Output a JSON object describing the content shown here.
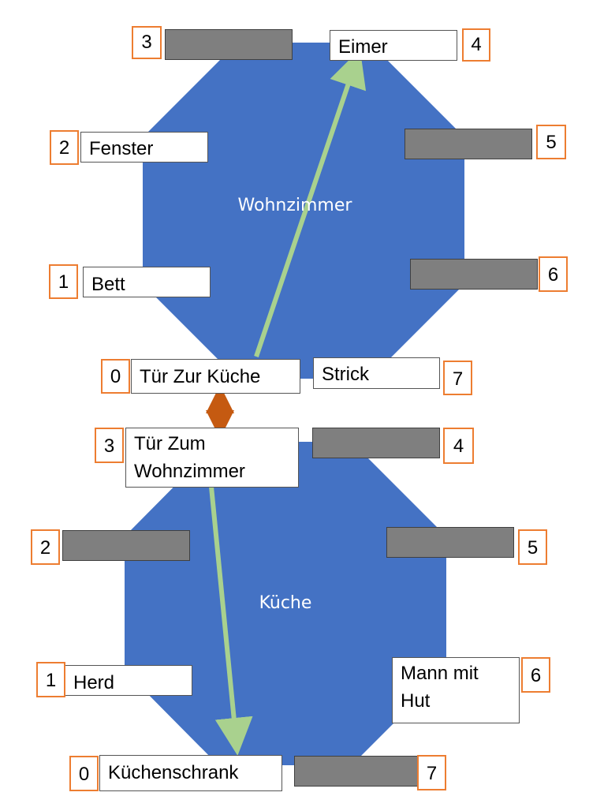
{
  "colors": {
    "room_fill": "#4472c4",
    "path_arrow": "#a9d18e",
    "link_arrow": "#c55a11",
    "number_border": "#ed7d31",
    "blank_box": "#7f7f7f"
  },
  "wohnzimmer": {
    "name": "Wohnzimmer",
    "slots": [
      {
        "number": "0",
        "label": "Tür Zur Küche"
      },
      {
        "number": "1",
        "label": "Bett"
      },
      {
        "number": "2",
        "label": "Fenster"
      },
      {
        "number": "3",
        "label": ""
      },
      {
        "number": "4",
        "label": "Eimer"
      },
      {
        "number": "5",
        "label": ""
      },
      {
        "number": "6",
        "label": ""
      },
      {
        "number": "7",
        "label": "Strick"
      }
    ]
  },
  "kueche": {
    "name": "Küche",
    "slots": [
      {
        "number": "0",
        "label": "Küchenschrank"
      },
      {
        "number": "1",
        "label": "Herd"
      },
      {
        "number": "2",
        "label": ""
      },
      {
        "number": "3",
        "label": "Tür Zum Wohnzimmer"
      },
      {
        "number": "4",
        "label": ""
      },
      {
        "number": "5",
        "label": ""
      },
      {
        "number": "6",
        "label": "Mann mit Hut"
      },
      {
        "number": "7",
        "label": ""
      }
    ]
  }
}
